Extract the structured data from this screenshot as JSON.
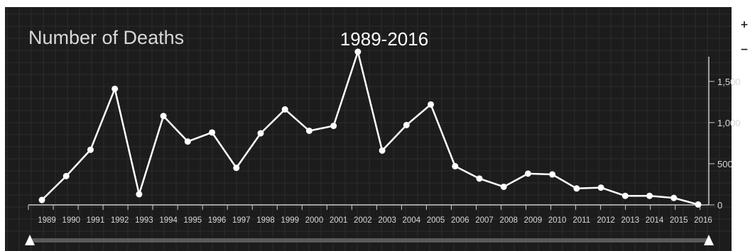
{
  "chart_data": {
    "type": "line",
    "title": "Number of Deaths",
    "subtitle": "1989-2016",
    "xlabel": "",
    "ylabel": "",
    "x": [
      "1989",
      "1990",
      "1991",
      "1992",
      "1993",
      "1994",
      "1995",
      "1996",
      "1997",
      "1998",
      "1999",
      "2000",
      "2001",
      "2002",
      "2003",
      "2004",
      "2005",
      "2006",
      "2007",
      "2008",
      "2009",
      "2010",
      "2011",
      "2012",
      "2013",
      "2014",
      "2015",
      "2016"
    ],
    "series": [
      {
        "values": [
          60,
          350,
          670,
          1410,
          130,
          1080,
          770,
          880,
          450,
          870,
          1160,
          900,
          960,
          1860,
          660,
          970,
          1220,
          470,
          320,
          220,
          380,
          370,
          200,
          210,
          110,
          110,
          85,
          5
        ]
      }
    ],
    "ylim": [
      0,
      1800
    ],
    "yticks": [
      0,
      500,
      1000,
      1500
    ],
    "ytick_labels": [
      "0",
      "500",
      "1,000",
      "1,500"
    ],
    "y_axis_side": "right",
    "grid": true,
    "legend": "none",
    "range_selector": {
      "start": "1989",
      "end": "2016"
    },
    "colors": {
      "background": "#1c1c1c",
      "grid": "#2c2c2c",
      "line": "#ffffff",
      "text": "#d8d8d8",
      "scrollbar": "#5a5a5a"
    }
  },
  "controls": {
    "zoom_in_icon": "+",
    "zoom_out_icon": "−"
  }
}
